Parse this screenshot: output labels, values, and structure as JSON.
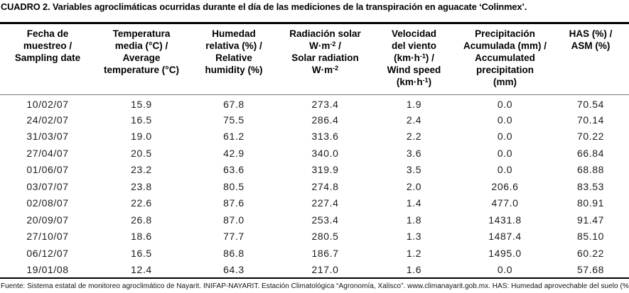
{
  "title": "CUADRO 2. Variables agroclimáticas ocurridas durante el día de las mediciones de la transpiración en aguacate ‘Colinmex’.",
  "table": {
    "columns": [
      {
        "id": "sampling-date",
        "header_lines": [
          "Fecha de",
          "muestreo /",
          "Sampling date"
        ]
      },
      {
        "id": "temperature",
        "header_lines": [
          "Temperatura",
          "media (°C) /",
          "Average",
          "temperature (°C)"
        ]
      },
      {
        "id": "humidity",
        "header_lines": [
          "Humedad",
          "relativa (%) /",
          "Relative",
          "humidity (%)"
        ]
      },
      {
        "id": "radiation",
        "header_lines": [
          "Radiación solar",
          "W·m^-2^ /",
          "Solar radiation",
          "W·m^-2^"
        ]
      },
      {
        "id": "wind-speed",
        "header_lines": [
          "Velocidad",
          "del viento",
          "(km·h^-1^) /",
          "Wind speed",
          "(km·h^-1^)"
        ]
      },
      {
        "id": "precipitation",
        "header_lines": [
          "Precipitación",
          "Acumulada (mm) /",
          "Accumulated",
          "precipitation",
          "(mm)"
        ]
      },
      {
        "id": "has-asm",
        "header_lines": [
          "HAS (%) /",
          "ASM (%)"
        ]
      }
    ],
    "rows": [
      [
        "10/02/07",
        "15.9",
        "67.8",
        "273.4",
        "1.9",
        "0.0",
        "70.54"
      ],
      [
        "24/02/07",
        "16.5",
        "75.5",
        "286.4",
        "2.4",
        "0.0",
        "70.14"
      ],
      [
        "31/03/07",
        "19.0",
        "61.2",
        "313.6",
        "2.2",
        "0.0",
        "70.22"
      ],
      [
        "27/04/07",
        "20.5",
        "42.9",
        "340.0",
        "3.6",
        "0.0",
        "66.84"
      ],
      [
        "01/06/07",
        "23.2",
        "63.6",
        "319.9",
        "3.5",
        "0.0",
        "68.88"
      ],
      [
        "03/07/07",
        "23.8",
        "80.5",
        "274.8",
        "2.0",
        "206.6",
        "83.53"
      ],
      [
        "02/08/07",
        "22.6",
        "87.6",
        "227.4",
        "1.4",
        "477.0",
        "80.91"
      ],
      [
        "20/09/07",
        "26.8",
        "87.0",
        "253.4",
        "1.8",
        "1431.8",
        "91.47"
      ],
      [
        "27/10/07",
        "18.6",
        "77.7",
        "280.5",
        "1.3",
        "1487.4",
        "85.10"
      ],
      [
        "06/12/07",
        "16.5",
        "86.8",
        "186.7",
        "1.2",
        "1495.0",
        "60.22"
      ],
      [
        "19/01/08",
        "12.4",
        "64.3",
        "217.0",
        "1.6",
        "0.0",
        "57.68"
      ]
    ]
  },
  "footer": "Fuente: Sistema estatal de monitoreo agroclimático de Nayarit. INIFAP-NAYARIT. Estación Climatológica “Agronomía, Xalisco”. www.climanayarit.gob.mx. HAS: Humedad aprovechable del suelo (%).",
  "colors": {
    "text": "#000000",
    "data_text": "#1c1c1c",
    "rule_heavy": "#000000",
    "rule_light": "#7a7a7a",
    "bg": "#ffffff"
  }
}
